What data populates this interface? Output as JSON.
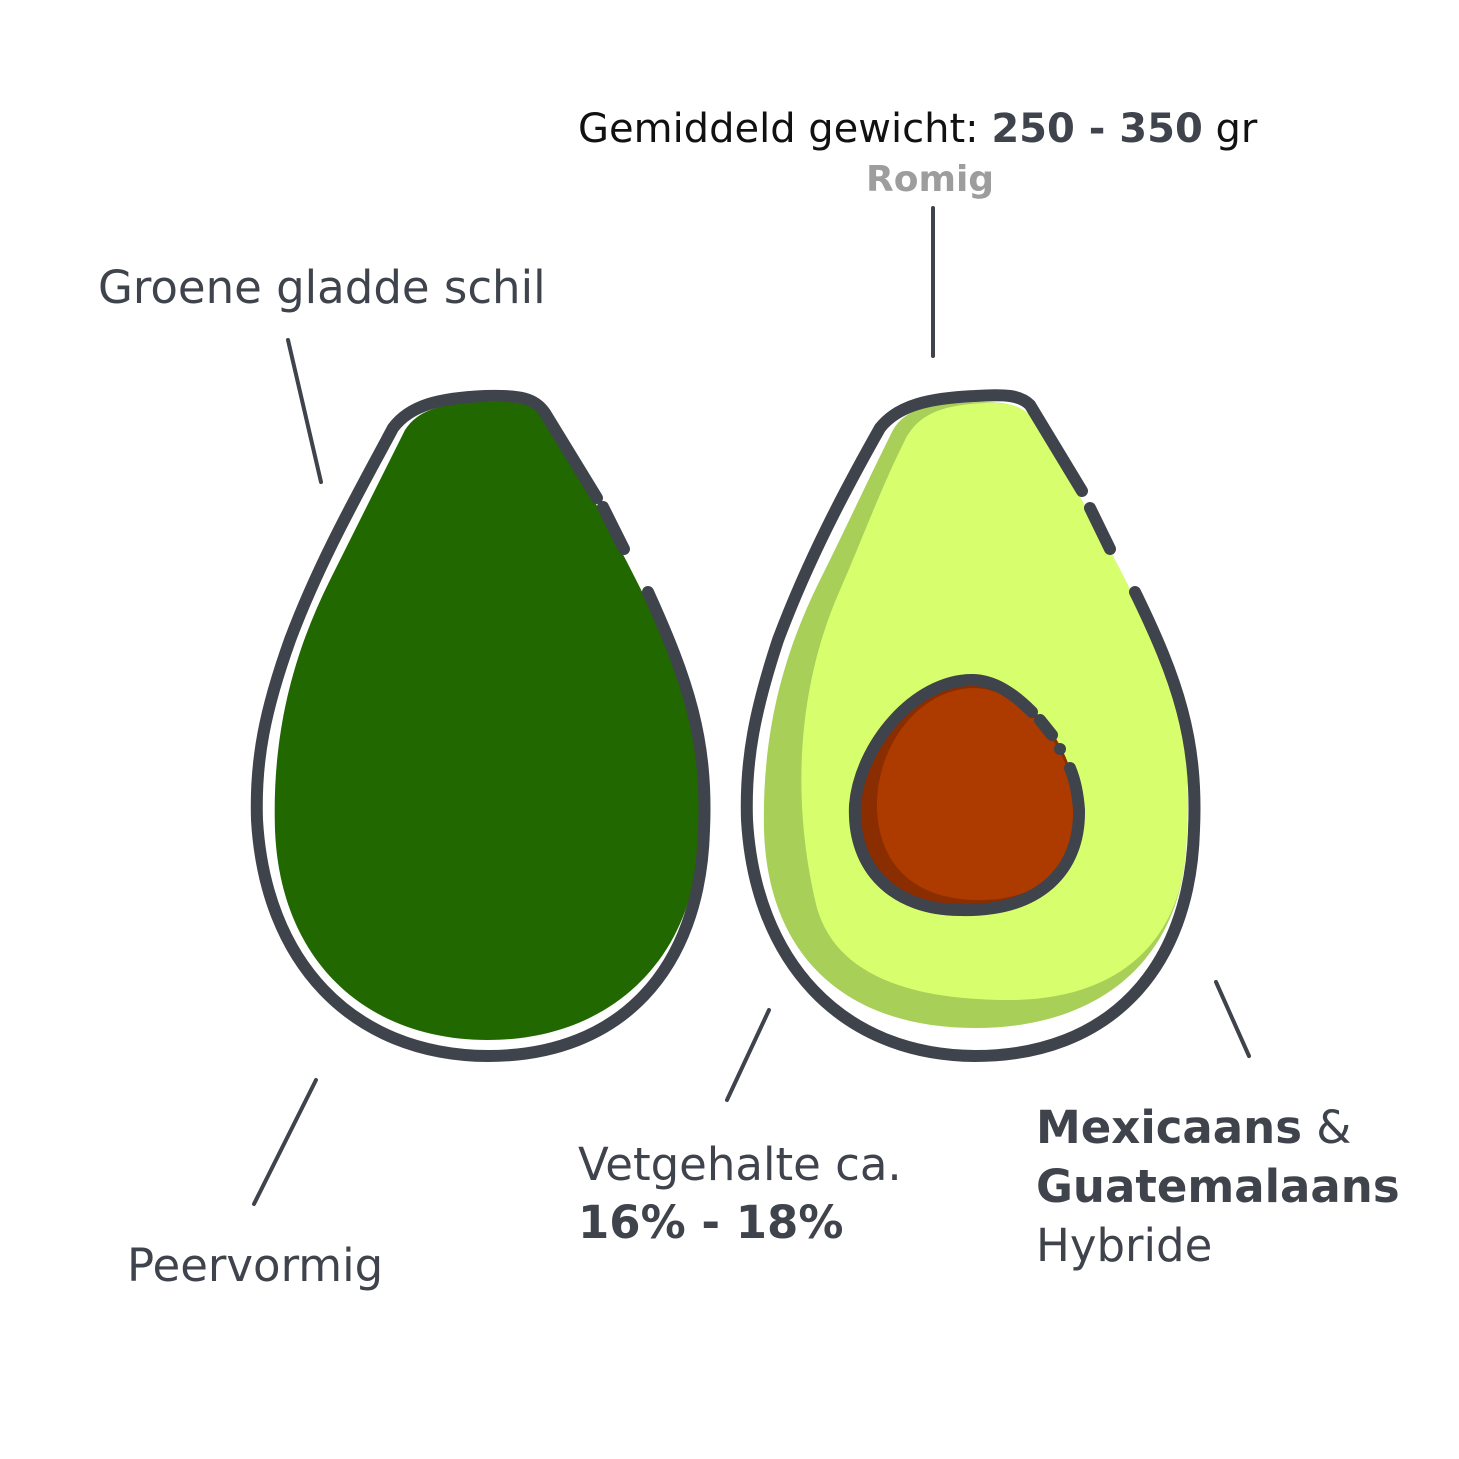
{
  "labels": {
    "weight": {
      "prefix": "Gemiddeld gewicht: ",
      "value": "250 - 350",
      "unit": " gr"
    },
    "texture": "Romig",
    "skin": "Groene gladde schil",
    "shape": "Peervormig",
    "fat": {
      "prefix": "Vetgehalte ca.",
      "value": "16% - 18%"
    },
    "origin": {
      "part1": "Mexicaans",
      "amp": " &",
      "part2": "Guatemalaans",
      "part3": "Hybride"
    }
  },
  "colors": {
    "outline": "#3f434b",
    "skin_green": "#226800",
    "flesh": "#d7ff6d",
    "flesh_shade": "#a8cf58",
    "pit": "#ad3b00",
    "pit_shade": "#8a2d00",
    "muted_text": "#9d9d9d",
    "text": "#3f434b"
  }
}
